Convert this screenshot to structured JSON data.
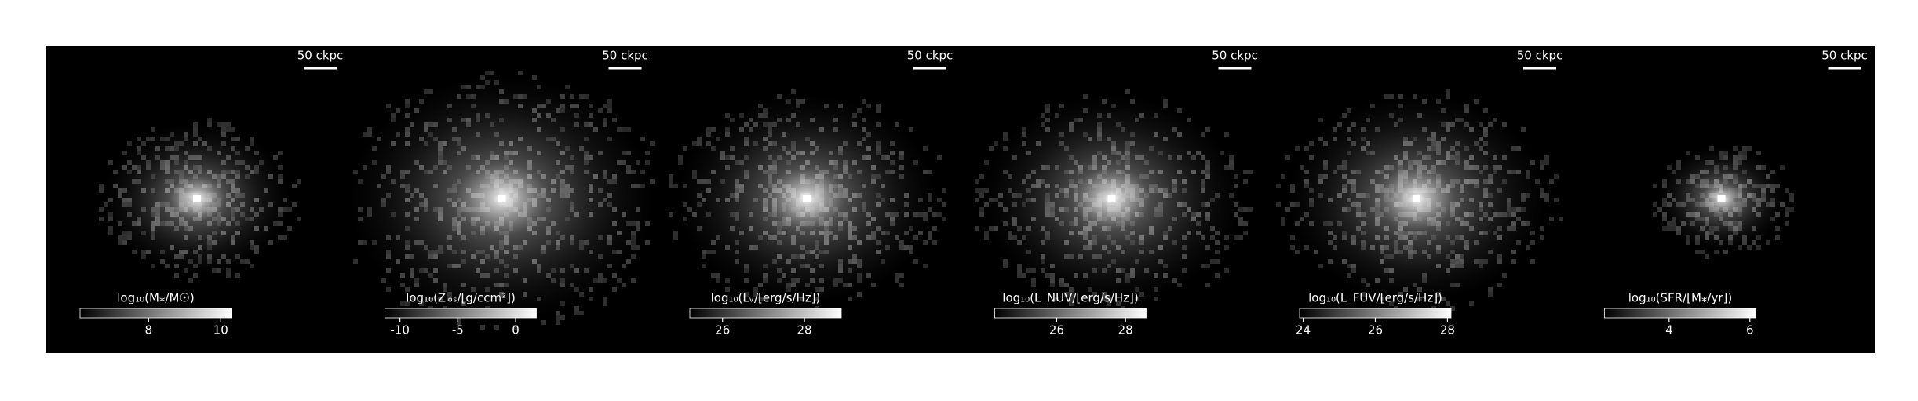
{
  "chart_data": [
    {
      "type": "image",
      "scalebar": "50 ckpc",
      "colorbar_label": "log₁₀(M⁎/M☉)",
      "clim": [
        6.1,
        10.3
      ],
      "colorbar_ticks": [
        8,
        10
      ],
      "spread": 0.8
    },
    {
      "type": "image",
      "scalebar": "50 ckpc",
      "colorbar_label": "log₁₀(Zₗₒₛ/[g/ccm²])",
      "clim": [
        -11.3,
        1.8
      ],
      "colorbar_ticks": [
        -10,
        -5,
        0
      ],
      "spread": 1.3
    },
    {
      "type": "image",
      "scalebar": "50 ckpc",
      "colorbar_label": "log₁₀(Lᵥ/[erg/s/Hz])",
      "clim": [
        25.2,
        28.9
      ],
      "colorbar_ticks": [
        26,
        28
      ],
      "spread": 1.1
    },
    {
      "type": "image",
      "scalebar": "50 ckpc",
      "colorbar_label": "log₁₀(L_NUV/[erg/s/Hz])",
      "clim": [
        24.2,
        28.6
      ],
      "colorbar_ticks": [
        26,
        28
      ],
      "spread": 1.1
    },
    {
      "type": "image",
      "scalebar": "50 ckpc",
      "colorbar_label": "log₁₀(L_FUV/[erg/s/Hz])",
      "clim": [
        23.9,
        28.1
      ],
      "colorbar_ticks": [
        24,
        26,
        28
      ],
      "spread": 1.1
    },
    {
      "type": "image",
      "scalebar": "50 ckpc",
      "colorbar_label": "log₁₀(SFR/[M⁎/yr])",
      "clim": [
        2.4,
        6.15
      ],
      "colorbar_ticks": [
        4,
        6
      ],
      "spread": 0.55
    }
  ]
}
